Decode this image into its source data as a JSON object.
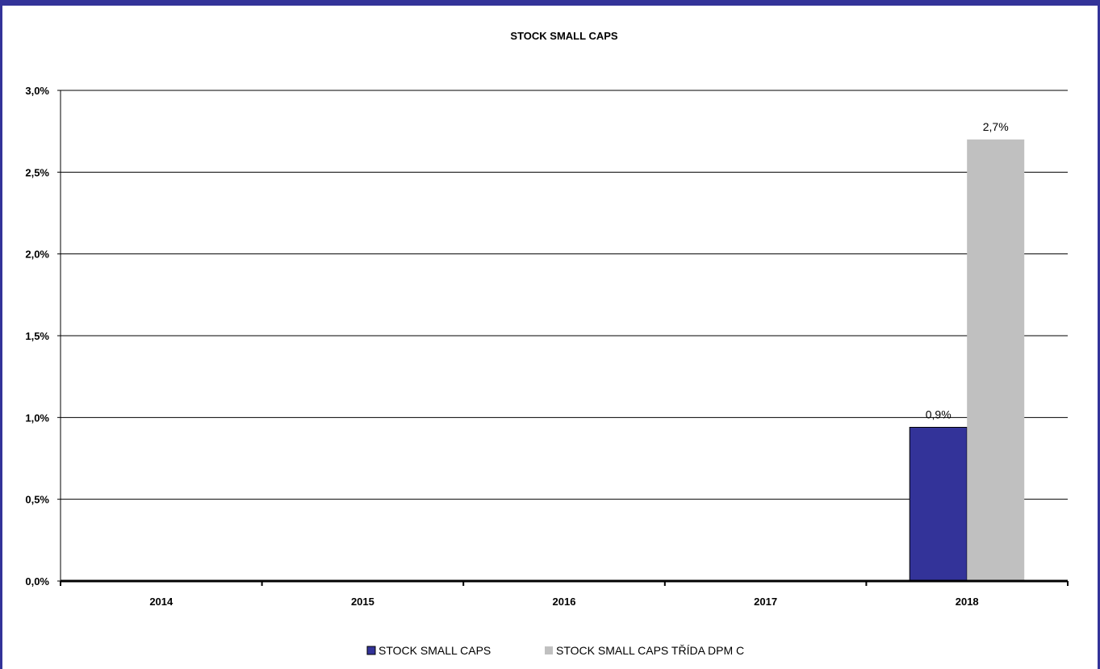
{
  "chart_data": {
    "type": "bar",
    "title": "STOCK SMALL CAPS",
    "categories": [
      "2014",
      "2015",
      "2016",
      "2017",
      "2018"
    ],
    "series": [
      {
        "name": "STOCK SMALL CAPS",
        "color": "#333399",
        "values": [
          null,
          null,
          null,
          null,
          0.94
        ],
        "data_labels": [
          null,
          null,
          null,
          null,
          "0,9%"
        ]
      },
      {
        "name": "STOCK SMALL CAPS TŘÍDA DPM C",
        "color": "#C0C0C0",
        "values": [
          null,
          null,
          null,
          null,
          2.7
        ],
        "data_labels": [
          null,
          null,
          null,
          null,
          "2,7%"
        ]
      }
    ],
    "ylim": [
      0,
      3.0
    ],
    "yticks": [
      0,
      0.5,
      1.0,
      1.5,
      2.0,
      2.5,
      3.0
    ],
    "ytick_labels": [
      "0,0%",
      "0,5%",
      "1,0%",
      "1,5%",
      "2,0%",
      "2,5%",
      "3,0%"
    ],
    "grid": true,
    "legend_position": "bottom-center",
    "xlabel": "",
    "ylabel": ""
  }
}
